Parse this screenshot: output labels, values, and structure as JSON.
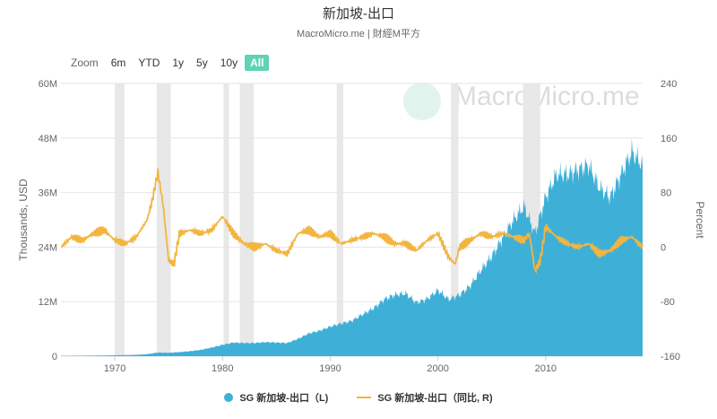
{
  "header": {
    "title": "新加坡-出口",
    "subtitle": "MacroMicro.me | 財經M平方"
  },
  "zoom": {
    "label": "Zoom",
    "buttons": [
      "6m",
      "YTD",
      "1y",
      "5y",
      "10y",
      "All"
    ],
    "active": "All"
  },
  "watermark": "MacroMicro.me",
  "colors": {
    "bars": "#3eb0d8",
    "line": "#f2b540",
    "zoom_active": "#5fd3b3",
    "recession": "#e8e8e8"
  },
  "chart_data": {
    "type": "area",
    "title": "新加坡-出口",
    "x_range": [
      1965,
      2019
    ],
    "x_ticks": [
      "1970",
      "1980",
      "1990",
      "2000",
      "2010"
    ],
    "y_left": {
      "label": "Thousands, USD",
      "range": [
        0,
        60000000
      ],
      "ticks": [
        "0",
        "12M",
        "24M",
        "36M",
        "48M",
        "60M"
      ]
    },
    "y_right": {
      "label": "Percent",
      "range": [
        -160,
        240
      ],
      "ticks": [
        "-160",
        "-80",
        "0",
        "80",
        "160",
        "240"
      ]
    },
    "recessions": [
      [
        1970.0,
        1970.9
      ],
      [
        1973.9,
        1975.2
      ],
      [
        1980.1,
        1980.6
      ],
      [
        1981.6,
        1982.9
      ],
      [
        1990.6,
        1991.2
      ],
      [
        2001.2,
        2001.9
      ],
      [
        2007.9,
        2009.5
      ]
    ],
    "series": [
      {
        "name": "SG 新加坡-出口（L)",
        "axis": "left",
        "x": [
          1965,
          1967,
          1969,
          1971,
          1972,
          1973,
          1974,
          1975,
          1976,
          1977,
          1978,
          1979,
          1980,
          1981,
          1982,
          1983,
          1984,
          1985,
          1986,
          1987,
          1988,
          1989,
          1990,
          1991,
          1992,
          1993,
          1994,
          1995,
          1996,
          1997,
          1998,
          1999,
          2000,
          2001,
          2002,
          2003,
          2004,
          2005,
          2006,
          2007,
          2008,
          2009,
          2010,
          2011,
          2012,
          2013,
          2014,
          2015,
          2016,
          2017,
          2018,
          2019
        ],
        "values": [
          80000,
          100000,
          150000,
          250000,
          300000,
          450000,
          800000,
          750000,
          900000,
          1100000,
          1400000,
          1900000,
          2500000,
          3000000,
          2900000,
          2900000,
          3100000,
          3000000,
          2900000,
          3800000,
          5000000,
          5600000,
          6500000,
          7200000,
          7800000,
          9200000,
          10500000,
          12500000,
          13500000,
          13800000,
          11800000,
          12600000,
          14500000,
          12500000,
          13500000,
          15500000,
          19000000,
          22000000,
          26000000,
          30000000,
          33000000,
          27000000,
          35000000,
          40000000,
          40000000,
          41000000,
          42000000,
          37000000,
          35000000,
          40000000,
          45000000,
          42000000
        ]
      },
      {
        "name": "SG 新加坡-出口（同比, R)",
        "axis": "right",
        "x": [
          1965,
          1966,
          1967,
          1968,
          1969,
          1970,
          1971,
          1972,
          1973,
          1973.5,
          1974,
          1974.5,
          1975,
          1975.5,
          1976,
          1977,
          1978,
          1979,
          1980,
          1981,
          1982,
          1983,
          1984,
          1985,
          1986,
          1987,
          1988,
          1989,
          1990,
          1991,
          1992,
          1993,
          1994,
          1995,
          1996,
          1997,
          1998,
          1999,
          2000,
          2001,
          2001.6,
          2002,
          2003,
          2004,
          2005,
          2006,
          2007,
          2008,
          2008.5,
          2009,
          2009.5,
          2010,
          2011,
          2012,
          2013,
          2014,
          2015,
          2016,
          2017,
          2018,
          2019
        ],
        "values": [
          0,
          15,
          10,
          20,
          25,
          10,
          5,
          15,
          40,
          70,
          110,
          60,
          -20,
          -25,
          20,
          25,
          20,
          25,
          45,
          20,
          5,
          0,
          5,
          -5,
          -10,
          20,
          25,
          15,
          20,
          5,
          10,
          15,
          20,
          15,
          5,
          5,
          -5,
          10,
          20,
          -15,
          -25,
          0,
          10,
          20,
          15,
          20,
          15,
          10,
          20,
          -35,
          -20,
          30,
          15,
          5,
          0,
          5,
          -10,
          -5,
          10,
          15,
          0
        ]
      }
    ],
    "legend_position": "bottom-center"
  }
}
